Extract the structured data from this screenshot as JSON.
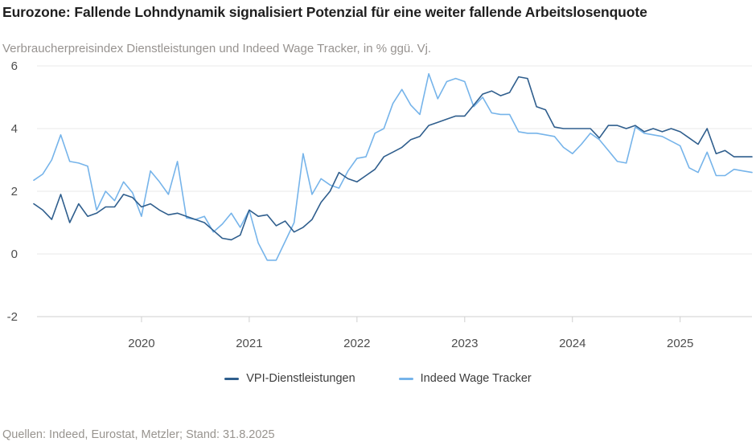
{
  "header": {
    "title": "Eurozone: Fallende Lohndynamik signalisiert Potenzial für eine weiter fallende Arbeitslosenquote",
    "subtitle": "Verbraucherpreisindex Dienstleistungen und Indeed Wage Tracker, in % ggü. Vj."
  },
  "legend": {
    "items": [
      {
        "label": "VPI-Dienstleistungen",
        "color": "#2f5e8d"
      },
      {
        "label": "Indeed Wage Tracker",
        "color": "#76b4ea"
      }
    ]
  },
  "footer": {
    "source": "Quellen: Indeed, Eurostat, Metzler; Stand: 31.8.2025"
  },
  "chart_data": {
    "type": "line",
    "title": "Eurozone: Fallende Lohndynamik signalisiert Potenzial für eine weiter fallende Arbeitslosenquote",
    "subtitle": "Verbraucherpreisindex Dienstleistungen und Indeed Wage Tracker, in % ggü. Vj.",
    "x_start": "2019-01",
    "frequency": "monthly",
    "x_tick_labels": [
      "2020",
      "2021",
      "2022",
      "2023",
      "2024",
      "2025"
    ],
    "y_tick_labels": [
      "-2",
      "0",
      "2",
      "4",
      "6"
    ],
    "y_ticks": [
      -2,
      0,
      2,
      4,
      6
    ],
    "ylim": [
      -2.7,
      6.2
    ],
    "grid": "horizontal",
    "legend_position": "bottom",
    "colors": {
      "gridline": "#e9e9e9",
      "axis": "#cfcfcf",
      "tick_label": "#4d4d4d"
    },
    "series": [
      {
        "name": "VPI-Dienstleistungen",
        "color": "#2f5e8d",
        "values": [
          1.6,
          1.4,
          1.1,
          1.9,
          1.0,
          1.6,
          1.2,
          1.3,
          1.5,
          1.5,
          1.9,
          1.8,
          1.5,
          1.6,
          1.4,
          1.25,
          1.3,
          1.2,
          1.1,
          1.0,
          0.75,
          0.5,
          0.45,
          0.6,
          1.4,
          1.2,
          1.25,
          0.9,
          1.05,
          0.7,
          0.85,
          1.1,
          1.65,
          2.0,
          2.6,
          2.4,
          2.3,
          2.5,
          2.7,
          3.1,
          3.25,
          3.4,
          3.65,
          3.75,
          4.1,
          4.2,
          4.3,
          4.4,
          4.4,
          4.75,
          5.1,
          5.2,
          5.05,
          5.15,
          5.65,
          5.6,
          4.7,
          4.6,
          4.05,
          4.0,
          4.0,
          4.0,
          4.0,
          3.7,
          4.1,
          4.1,
          4.0,
          4.1,
          3.9,
          4.0,
          3.9,
          4.0,
          3.9,
          3.7,
          3.5,
          4.0,
          3.2,
          3.3,
          3.1,
          3.1,
          3.1
        ]
      },
      {
        "name": "Indeed Wage Tracker",
        "color": "#76b4ea",
        "values": [
          2.35,
          2.55,
          3.0,
          3.8,
          2.95,
          2.9,
          2.8,
          1.4,
          2.0,
          1.7,
          2.3,
          1.95,
          1.2,
          2.65,
          2.3,
          1.9,
          2.95,
          1.15,
          1.1,
          1.2,
          0.7,
          0.95,
          1.3,
          0.85,
          1.4,
          0.35,
          -0.2,
          -0.2,
          0.4,
          1.0,
          3.2,
          1.9,
          2.4,
          2.2,
          2.1,
          2.65,
          3.05,
          3.1,
          3.85,
          4.0,
          4.8,
          5.25,
          4.75,
          4.45,
          5.75,
          4.95,
          5.5,
          5.6,
          5.5,
          4.7,
          5.0,
          4.5,
          4.45,
          4.45,
          3.9,
          3.85,
          3.85,
          3.8,
          3.75,
          3.4,
          3.2,
          3.5,
          3.85,
          3.65,
          3.3,
          2.95,
          2.9,
          4.05,
          3.85,
          3.8,
          3.75,
          3.6,
          3.45,
          2.75,
          2.6,
          3.25,
          2.5,
          2.5,
          2.7,
          2.65,
          2.6
        ]
      }
    ]
  }
}
